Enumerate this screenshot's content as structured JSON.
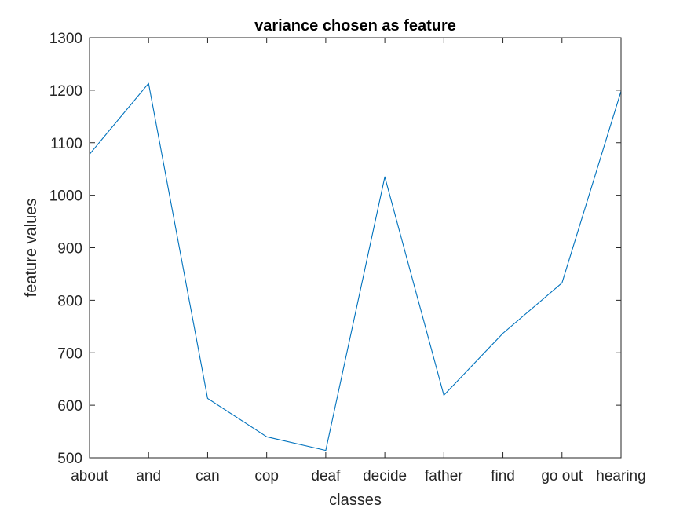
{
  "chart_data": {
    "type": "line",
    "title": "variance chosen as feature",
    "xlabel": "classes",
    "ylabel": "feature values",
    "categories": [
      "about",
      "and",
      "can",
      "cop",
      "deaf",
      "decide",
      "father",
      "find",
      "go out",
      "hearing"
    ],
    "series": [
      {
        "values": [
          1078,
          1213,
          613,
          540,
          514,
          1035,
          619,
          737,
          833,
          1198
        ],
        "color": "#0072bd"
      }
    ],
    "ylim": [
      500,
      1300
    ],
    "yticks": [
      500,
      600,
      700,
      800,
      900,
      1000,
      1100,
      1200,
      1300
    ],
    "grid": false,
    "legend": "none"
  }
}
